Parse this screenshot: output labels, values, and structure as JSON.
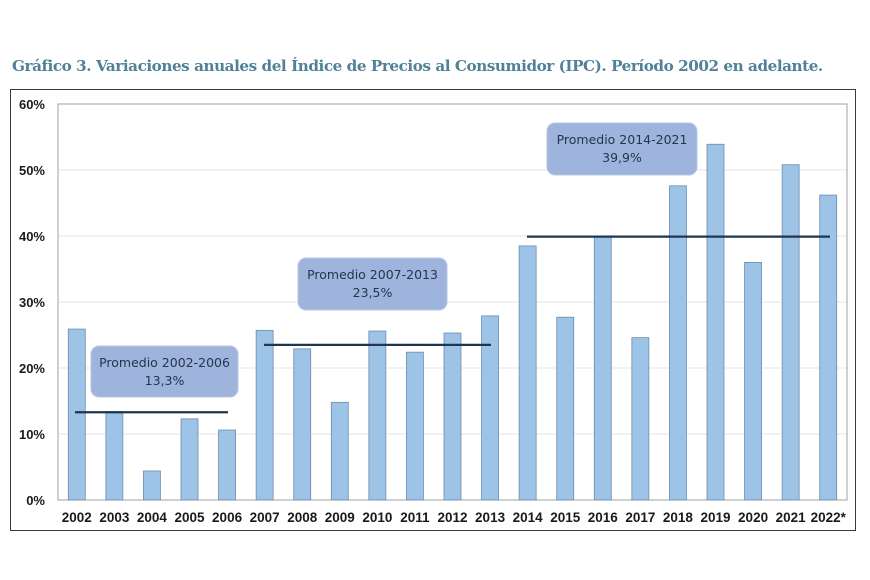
{
  "chart_data": {
    "type": "bar",
    "title": "Gráfico 3. Variaciones anuales del Índice de Precios al Consumidor (IPC). Período 2002 en adelante.",
    "xlabel": "",
    "ylabel": "",
    "ylim": [
      0,
      60
    ],
    "y_ticks": [
      0,
      10,
      20,
      30,
      40,
      50,
      60
    ],
    "y_tick_labels": [
      "0%",
      "10%",
      "20%",
      "30%",
      "40%",
      "50%",
      "60%"
    ],
    "grid": true,
    "categories": [
      "2002",
      "2003",
      "2004",
      "2005",
      "2006",
      "2007",
      "2008",
      "2009",
      "2010",
      "2011",
      "2012",
      "2013",
      "2014",
      "2015",
      "2016",
      "2017",
      "2018",
      "2019",
      "2020",
      "2021",
      "2022*"
    ],
    "values": [
      25.9,
      13.4,
      4.4,
      12.3,
      10.6,
      25.7,
      22.9,
      14.8,
      25.6,
      22.4,
      25.3,
      27.9,
      38.5,
      27.7,
      39.9,
      24.6,
      47.6,
      53.9,
      36.0,
      50.8,
      46.2
    ],
    "unit": "%",
    "colors": {
      "bar_fill": "#9dc3e6",
      "bar_stroke": "#6f8cad",
      "average_line": "#1f3550",
      "annotation_fill": "#9eb4dd",
      "title": "#4f8198"
    },
    "averages": [
      {
        "label": "Promedio 2002-2006",
        "value_label": "13,3%",
        "value": 13.3,
        "from": "2002",
        "to": "2006"
      },
      {
        "label": "Promedio 2007-2013",
        "value_label": "23,5%",
        "value": 23.5,
        "from": "2007",
        "to": "2013"
      },
      {
        "label": "Promedio 2014-2021",
        "value_label": "39,9%",
        "value": 39.9,
        "from": "2014",
        "to": "2022*"
      }
    ]
  }
}
